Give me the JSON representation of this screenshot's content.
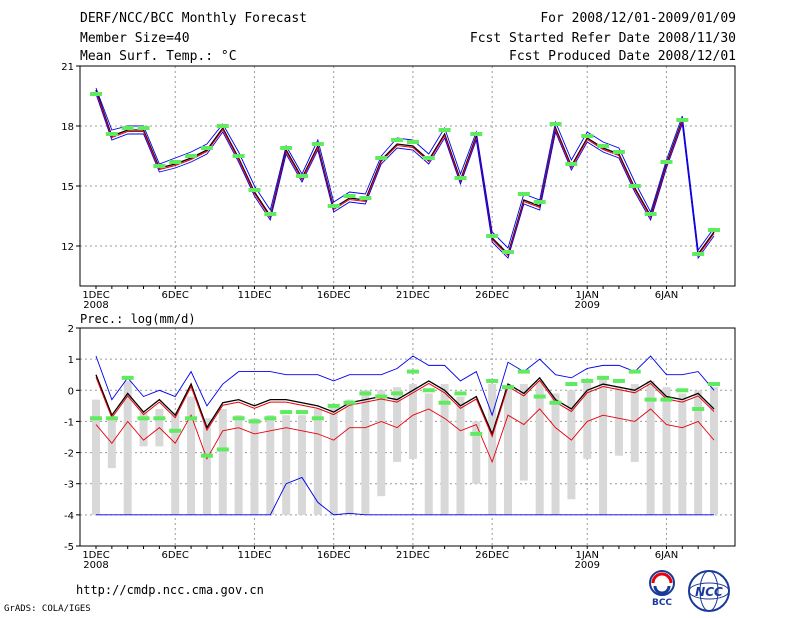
{
  "header": {
    "title": "DERF/NCC/BCC Monthly Forecast",
    "member": "Member Size=40",
    "variable": "Mean Surf. Temp.: °C",
    "period": "For 2008/12/01-2009/01/09",
    "started": "Fcst Started Refer Date 2008/11/30",
    "produced": "Fcst Produced Date 2008/12/01"
  },
  "footer": {
    "url": "http://cmdp.ncc.cma.gov.cn",
    "grads": "GrADS: COLA/IGES",
    "logo_bcc": "BCC",
    "logo_ncc": "NCC"
  },
  "colors": {
    "mean": "#000000",
    "ens": "#e8000b",
    "spread": "#0000ee",
    "obs": "#5fea5f",
    "box": "#d8d8d8",
    "grid": "#9a9a9a"
  },
  "chart_data": [
    {
      "type": "line",
      "title": "Mean Surf. Temp.: °C",
      "days": 40,
      "ylim": [
        10,
        21
      ],
      "yticks": [
        12,
        15,
        18,
        21
      ],
      "xtick_labels": [
        {
          "day": 1,
          "label": "1DEC",
          "sub": "2008"
        },
        {
          "day": 6,
          "label": "6DEC",
          "sub": ""
        },
        {
          "day": 11,
          "label": "11DEC",
          "sub": ""
        },
        {
          "day": 16,
          "label": "16DEC",
          "sub": ""
        },
        {
          "day": 21,
          "label": "21DEC",
          "sub": ""
        },
        {
          "day": 26,
          "label": "26DEC",
          "sub": ""
        },
        {
          "day": 32,
          "label": "1JAN",
          "sub": "2009"
        },
        {
          "day": 37,
          "label": "6JAN",
          "sub": ""
        }
      ],
      "series": [
        {
          "name": "ensemble mean",
          "values": [
            19.8,
            17.5,
            17.8,
            17.8,
            15.9,
            16.1,
            16.4,
            16.8,
            17.9,
            16.4,
            14.7,
            13.5,
            16.8,
            15.4,
            17.0,
            13.9,
            14.4,
            14.3,
            16.3,
            17.1,
            17.0,
            16.3,
            17.6,
            15.3,
            17.5,
            12.4,
            11.6,
            14.3,
            14.0,
            17.9,
            16.0,
            17.4,
            16.9,
            16.6,
            14.9,
            13.5,
            16.1,
            18.3,
            11.6,
            12.7
          ]
        },
        {
          "name": "spread upper",
          "values": [
            19.9,
            17.8,
            18.0,
            18.0,
            16.1,
            16.4,
            16.7,
            17.1,
            18.1,
            16.7,
            15.0,
            13.8,
            17.0,
            15.6,
            17.3,
            14.2,
            14.7,
            14.6,
            16.5,
            17.4,
            17.3,
            16.6,
            17.9,
            15.6,
            17.7,
            12.7,
            11.9,
            14.6,
            14.3,
            18.2,
            16.3,
            17.7,
            17.2,
            16.9,
            15.2,
            13.7,
            16.3,
            18.5,
            11.8,
            12.9
          ]
        },
        {
          "name": "spread lower",
          "values": [
            19.6,
            17.3,
            17.6,
            17.6,
            15.7,
            15.9,
            16.2,
            16.6,
            17.7,
            16.2,
            14.5,
            13.3,
            16.6,
            15.2,
            16.8,
            13.7,
            14.2,
            14.1,
            16.1,
            16.9,
            16.8,
            16.1,
            17.4,
            15.1,
            17.3,
            12.2,
            11.4,
            14.1,
            13.8,
            17.7,
            15.8,
            17.2,
            16.7,
            16.4,
            14.7,
            13.3,
            15.9,
            18.1,
            11.4,
            12.5
          ]
        }
      ],
      "observed": [
        19.6,
        17.6,
        17.9,
        17.9,
        16.0,
        16.2,
        16.5,
        16.9,
        18.0,
        16.5,
        14.8,
        13.6,
        16.9,
        15.5,
        17.1,
        14.0,
        14.5,
        14.4,
        16.4,
        17.3,
        17.2,
        16.4,
        17.8,
        15.4,
        17.6,
        12.5,
        11.7,
        14.6,
        14.2,
        18.1,
        16.1,
        17.5,
        17.0,
        16.7,
        15.0,
        13.6,
        16.2,
        18.3,
        11.6,
        12.8
      ]
    },
    {
      "type": "line",
      "title": "Prec.: log(mm/d)",
      "days": 40,
      "ylim": [
        -5,
        2
      ],
      "yticks": [
        -5,
        -4,
        -3,
        -2,
        -1,
        0,
        1,
        2
      ],
      "xtick_labels": [
        {
          "day": 1,
          "label": "1DEC",
          "sub": "2008"
        },
        {
          "day": 6,
          "label": "6DEC",
          "sub": ""
        },
        {
          "day": 11,
          "label": "11DEC",
          "sub": ""
        },
        {
          "day": 16,
          "label": "16DEC",
          "sub": ""
        },
        {
          "day": 21,
          "label": "21DEC",
          "sub": ""
        },
        {
          "day": 26,
          "label": "26DEC",
          "sub": ""
        },
        {
          "day": 32,
          "label": "1JAN",
          "sub": "2009"
        },
        {
          "day": 37,
          "label": "6JAN",
          "sub": ""
        }
      ],
      "boxes": [
        [
          -4,
          -0.3
        ],
        [
          -2.5,
          -0.9
        ],
        [
          -4,
          0.3
        ],
        [
          -1.8,
          -0.7
        ],
        [
          -1.8,
          -0.6
        ],
        [
          -4,
          -0.7
        ],
        [
          -4,
          -0.2
        ],
        [
          -4,
          -0.9
        ],
        [
          -4,
          -0.6
        ],
        [
          -4,
          -0.8
        ],
        [
          -4,
          -0.9
        ],
        [
          -4,
          -0.8
        ],
        [
          -4,
          -0.8
        ],
        [
          -4,
          -0.8
        ],
        [
          -4,
          -0.6
        ],
        [
          -4,
          -0.5
        ],
        [
          -4,
          -0.3
        ],
        [
          -4,
          0.0
        ],
        [
          -3.4,
          0.0
        ],
        [
          -2.3,
          0.1
        ],
        [
          -2.2,
          0.2
        ],
        [
          -4,
          -0.1
        ],
        [
          -4,
          0.2
        ],
        [
          -4,
          -0.2
        ],
        [
          -3.0,
          -1.0
        ],
        [
          -4,
          0.2
        ],
        [
          -4,
          0.1
        ],
        [
          -2.9,
          0.2
        ],
        [
          -4,
          0.3
        ],
        [
          -4,
          -0.1
        ],
        [
          -3.5,
          0.0
        ],
        [
          -2.2,
          0.3
        ],
        [
          -4,
          0.4
        ],
        [
          -2.1,
          0.1
        ],
        [
          -2.3,
          0.2
        ],
        [
          -4,
          0.3
        ],
        [
          -4,
          0.1
        ],
        [
          -4,
          -0.1
        ],
        [
          -4,
          0.0
        ],
        [
          -4,
          0.1
        ]
      ],
      "series": [
        {
          "name": "ensemble mean",
          "values": [
            0.5,
            -0.8,
            -0.1,
            -0.7,
            -0.3,
            -0.8,
            0.2,
            -1.2,
            -0.4,
            -0.3,
            -0.5,
            -0.3,
            -0.3,
            -0.4,
            -0.5,
            -0.7,
            -0.4,
            -0.3,
            -0.2,
            -0.3,
            0.0,
            0.3,
            0.0,
            -0.5,
            -0.2,
            -1.4,
            0.2,
            -0.1,
            0.4,
            -0.3,
            -0.6,
            0.0,
            0.2,
            0.1,
            0.0,
            0.3,
            -0.2,
            -0.3,
            -0.1,
            -0.6
          ]
        },
        {
          "name": "spread upper",
          "values": [
            1.1,
            -0.3,
            0.4,
            -0.2,
            0.0,
            -0.2,
            0.6,
            -0.5,
            0.2,
            0.6,
            0.6,
            0.6,
            0.5,
            0.5,
            0.5,
            0.3,
            0.5,
            0.5,
            0.5,
            0.7,
            1.1,
            0.8,
            0.8,
            0.3,
            0.6,
            -0.8,
            0.9,
            0.6,
            1.0,
            0.5,
            0.4,
            0.7,
            0.8,
            0.8,
            0.6,
            1.1,
            0.5,
            0.5,
            0.6,
            0.0
          ]
        },
        {
          "name": "spread lower",
          "values": [
            -1.1,
            -1.7,
            -1.0,
            -1.6,
            -1.2,
            -1.7,
            -0.8,
            -2.2,
            -1.3,
            -1.2,
            -1.4,
            -1.3,
            -1.2,
            -1.3,
            -1.4,
            -1.6,
            -1.2,
            -1.2,
            -1.0,
            -1.2,
            -0.8,
            -0.6,
            -0.9,
            -1.3,
            -1.1,
            -2.3,
            -0.8,
            -1.1,
            -0.6,
            -1.2,
            -1.6,
            -1.0,
            -0.8,
            -0.9,
            -1.0,
            -0.6,
            -1.1,
            -1.2,
            -1.0,
            -1.6
          ]
        },
        {
          "name": "minimum",
          "values": [
            -4,
            -4,
            -4,
            -4,
            -4,
            -4,
            -4,
            -4,
            -4,
            -4,
            -4,
            -4,
            -3.0,
            -2.8,
            -3.6,
            -4,
            -3.95,
            -4,
            -4,
            -4,
            -4,
            -4,
            -4,
            -4,
            -4,
            -4,
            -4,
            -4,
            -4,
            -4,
            -4,
            -4,
            -4,
            -4,
            -4,
            -4,
            -4,
            -4,
            -4,
            -4
          ]
        }
      ],
      "observed": [
        -0.9,
        -0.9,
        0.4,
        -0.9,
        -0.9,
        -1.3,
        -0.9,
        -2.1,
        -1.9,
        -0.9,
        -1.0,
        -0.9,
        -0.7,
        -0.7,
        -0.9,
        -0.5,
        -0.4,
        -0.1,
        -0.2,
        -0.1,
        0.6,
        0.0,
        -0.4,
        -0.1,
        -1.4,
        0.3,
        0.1,
        0.6,
        -0.2,
        -0.4,
        0.2,
        0.3,
        0.4,
        0.3,
        0.6,
        -0.3,
        -0.3,
        0.0,
        -0.6,
        0.2
      ]
    }
  ]
}
